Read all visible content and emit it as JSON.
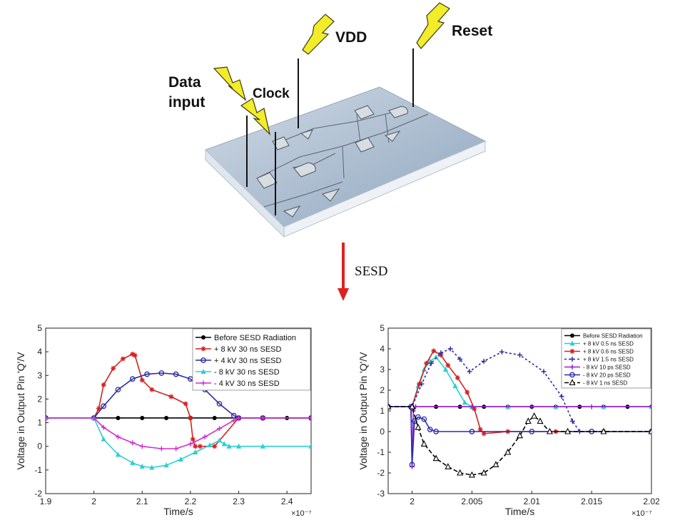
{
  "diagram": {
    "labels": {
      "data_input_1": "Data",
      "data_input_2": "input",
      "clock": "Clock",
      "vdd": "VDD",
      "reset": "Reset"
    },
    "arrow_label": "SESD",
    "colors": {
      "bolt": "#f2ec2a",
      "board": "#b7c6d6",
      "arrow": "#e02020"
    }
  },
  "chart_data": [
    {
      "type": "line",
      "xlabel": "Time/s",
      "ylabel": "Voltage in Output Pin 'Q'/V",
      "x_exponent": "×10⁻⁷",
      "xlim": [
        1.9,
        2.45
      ],
      "ylim": [
        -2,
        5
      ],
      "xticks": [
        1.9,
        2,
        2.1,
        2.2,
        2.3,
        2.4
      ],
      "xtick_labels": [
        "1.9",
        "2",
        "2.1",
        "2.2",
        "2.3",
        "2.4"
      ],
      "yticks": [
        -2,
        -1,
        0,
        1,
        2,
        3,
        4,
        5
      ],
      "grid": false,
      "legend_position": "top-right",
      "series": [
        {
          "name": "Before SESD Radiation",
          "color": "#000000",
          "marker": "dot",
          "dash": "",
          "x": [
            1.9,
            2.0,
            2.05,
            2.1,
            2.15,
            2.2,
            2.25,
            2.3,
            2.35,
            2.4,
            2.45
          ],
          "y": [
            1.2,
            1.2,
            1.2,
            1.2,
            1.2,
            1.2,
            1.2,
            1.2,
            1.2,
            1.2,
            1.2
          ]
        },
        {
          "name": "+ 8 kV 30 ns SESD",
          "color": "#d42020",
          "marker": "star",
          "dash": "",
          "x": [
            1.9,
            2.0,
            2.01,
            2.02,
            2.04,
            2.06,
            2.08,
            2.085,
            2.1,
            2.12,
            2.16,
            2.19,
            2.2,
            2.205,
            2.21,
            2.22,
            2.25,
            2.3,
            2.35,
            2.45
          ],
          "y": [
            1.2,
            1.2,
            1.6,
            2.6,
            3.3,
            3.7,
            3.9,
            3.85,
            2.8,
            2.4,
            2.1,
            1.8,
            1.2,
            0.3,
            0.0,
            0.0,
            0.0,
            1.2,
            1.2,
            1.2
          ]
        },
        {
          "name": "+ 4 kV 30 ns SESD",
          "color": "#2a2aa0",
          "marker": "circle",
          "dash": "",
          "x": [
            1.9,
            2.0,
            2.02,
            2.05,
            2.08,
            2.11,
            2.14,
            2.17,
            2.2,
            2.23,
            2.26,
            2.29,
            2.3,
            2.35,
            2.45
          ],
          "y": [
            1.2,
            1.2,
            1.7,
            2.4,
            2.85,
            3.05,
            3.1,
            3.05,
            2.85,
            2.4,
            1.8,
            1.3,
            1.2,
            1.2,
            1.2
          ]
        },
        {
          "name": "- 8 kV 30 ns SESD",
          "color": "#2ad0d0",
          "marker": "triangle",
          "dash": "",
          "x": [
            1.9,
            2.0,
            2.02,
            2.05,
            2.08,
            2.1,
            2.12,
            2.15,
            2.18,
            2.21,
            2.24,
            2.26,
            2.27,
            2.28,
            2.3,
            2.35,
            2.45
          ],
          "y": [
            1.2,
            1.2,
            0.3,
            -0.35,
            -0.7,
            -0.85,
            -0.9,
            -0.8,
            -0.55,
            -0.25,
            0.05,
            0.25,
            0.1,
            0.0,
            0.0,
            0.0,
            0.0
          ]
        },
        {
          "name": "- 4 kV 30 ns SESD",
          "color": "#d030d0",
          "marker": "plus",
          "dash": "",
          "x": [
            1.9,
            2.0,
            2.02,
            2.05,
            2.08,
            2.1,
            2.14,
            2.17,
            2.2,
            2.23,
            2.26,
            2.29,
            2.3,
            2.35,
            2.45
          ],
          "y": [
            1.2,
            1.2,
            0.8,
            0.4,
            0.15,
            0.0,
            -0.1,
            -0.1,
            0.1,
            0.4,
            0.75,
            1.1,
            1.2,
            1.2,
            1.2
          ]
        }
      ]
    },
    {
      "type": "line",
      "xlabel": "Time/s",
      "ylabel": "Voltage in Output Pin 'Q'/V",
      "x_exponent": "×10⁻⁷",
      "xlim": [
        1.998,
        2.02
      ],
      "ylim": [
        -3,
        5
      ],
      "xticks": [
        2.0,
        2.005,
        2.01,
        2.015,
        2.02
      ],
      "xtick_labels": [
        "2",
        "2.005",
        "2.01",
        "2.015",
        "2.02"
      ],
      "yticks": [
        -3,
        -2,
        -1,
        0,
        1,
        2,
        3,
        4,
        5
      ],
      "grid": false,
      "legend_position": "top-right",
      "series": [
        {
          "name": "Before SESD Radiation",
          "color": "#000000",
          "marker": "dot",
          "dash": "",
          "x": [
            1.998,
            2.0,
            2.002,
            2.004,
            2.006,
            2.008,
            2.01,
            2.012,
            2.014,
            2.016,
            2.018,
            2.02
          ],
          "y": [
            1.2,
            1.2,
            1.2,
            1.2,
            1.2,
            1.2,
            1.2,
            1.2,
            1.2,
            1.2,
            1.2,
            1.2
          ]
        },
        {
          "name": "+ 8 kV 0.5 ns SESD",
          "color": "#2ad0d0",
          "marker": "triangle",
          "dash": "",
          "x": [
            1.998,
            2.0,
            2.0005,
            2.001,
            2.0015,
            2.002,
            2.0028,
            2.0036,
            2.0044,
            2.005,
            2.008,
            2.012,
            2.016,
            2.02
          ],
          "y": [
            1.2,
            1.2,
            2.2,
            3.0,
            3.4,
            3.6,
            3.0,
            2.2,
            1.4,
            1.2,
            1.2,
            1.2,
            1.2,
            1.2
          ]
        },
        {
          "name": "+ 8 kV 0.6 ns SESD",
          "color": "#d42020",
          "marker": "star",
          "dash": "",
          "x": [
            1.998,
            2.0,
            2.0006,
            2.0012,
            2.0018,
            2.0024,
            2.003,
            2.0038,
            2.0046,
            2.0052,
            2.0057,
            2.006,
            2.008,
            2.012,
            2.016,
            2.02
          ],
          "y": [
            1.2,
            1.2,
            2.3,
            3.3,
            3.9,
            3.7,
            3.2,
            2.6,
            1.9,
            1.1,
            0.1,
            -0.1,
            0.0,
            0.0,
            0.0,
            0.0
          ]
        },
        {
          "name": "+ 8 kV 1.5 ns SESD",
          "color": "#2a2aa0",
          "marker": "plus",
          "dash": "3,3",
          "x": [
            1.998,
            2.0,
            2.0008,
            2.0016,
            2.0024,
            2.0032,
            2.004,
            2.0048,
            2.006,
            2.0075,
            2.009,
            2.011,
            2.0125,
            2.0134,
            2.014,
            2.016,
            2.02
          ],
          "y": [
            1.2,
            1.2,
            2.3,
            3.3,
            3.8,
            4.0,
            3.5,
            2.9,
            3.4,
            3.85,
            3.7,
            2.9,
            1.7,
            0.5,
            0.0,
            0.0,
            0.0
          ]
        },
        {
          "name": "- 8 kV 10 ps SESD",
          "color": "#9a20d0",
          "marker": "plus",
          "dash": "",
          "x": [
            1.998,
            1.9999,
            2.0,
            2.0001,
            2.0003,
            2.005,
            2.01,
            2.015,
            2.02
          ],
          "y": [
            1.2,
            1.2,
            -1.7,
            1.0,
            1.2,
            1.2,
            1.2,
            1.2,
            1.2
          ]
        },
        {
          "name": "- 8 kV 20 ps SESD",
          "color": "#2a2ab0",
          "marker": "circle",
          "dash": "",
          "x": [
            1.998,
            1.9999,
            2.0,
            2.0002,
            2.0005,
            2.001,
            2.0015,
            2.002,
            2.005,
            2.01,
            2.015,
            2.02
          ],
          "y": [
            1.2,
            1.2,
            -1.6,
            0.5,
            0.7,
            0.6,
            0.1,
            0.0,
            0.0,
            0.0,
            0.0,
            0.0
          ]
        },
        {
          "name": "- 8 kV 1 ns SESD",
          "color": "#000000",
          "marker": "open-triangle",
          "dash": "6,3",
          "x": [
            1.998,
            2.0,
            2.0005,
            2.001,
            2.002,
            2.003,
            2.004,
            2.005,
            2.006,
            2.007,
            2.008,
            2.009,
            2.0097,
            2.0102,
            2.0107,
            2.0115,
            2.013,
            2.016,
            2.02
          ],
          "y": [
            1.2,
            1.2,
            0.2,
            -0.6,
            -1.3,
            -1.7,
            -2.0,
            -2.1,
            -2.0,
            -1.6,
            -1.0,
            -0.2,
            0.5,
            0.75,
            0.5,
            0.0,
            0.0,
            0.0,
            0.0
          ]
        }
      ]
    }
  ]
}
